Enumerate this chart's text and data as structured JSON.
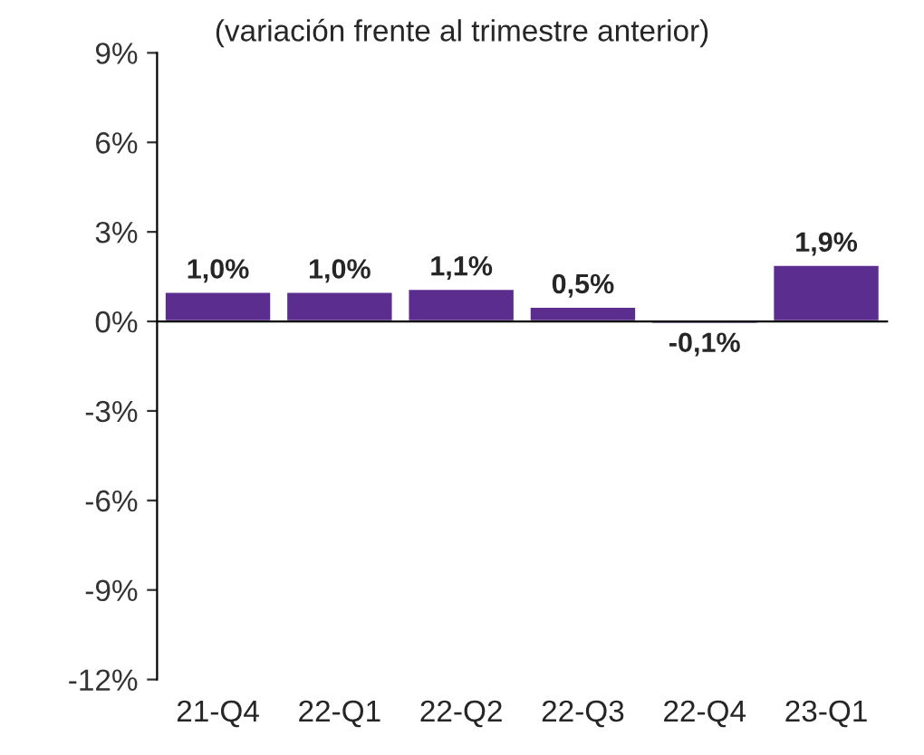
{
  "chart_data": {
    "type": "bar",
    "subtitle": "(variación frente al trimestre anterior)",
    "categories": [
      "21-Q4",
      "22-Q1",
      "22-Q2",
      "22-Q3",
      "22-Q4",
      "23-Q1"
    ],
    "values": [
      1.0,
      1.0,
      1.1,
      0.5,
      -0.1,
      1.9
    ],
    "value_labels": [
      "1,0%",
      "1,0%",
      "1,1%",
      "0,5%",
      "-0,1%",
      "1,9%"
    ],
    "color": "#5b2d8e",
    "ylim": [
      -12,
      9
    ],
    "yticks": [
      {
        "value": -12,
        "label": "-12%"
      },
      {
        "value": -9,
        "label": "-9%"
      },
      {
        "value": -6,
        "label": "-6%"
      },
      {
        "value": -3,
        "label": "-3%"
      },
      {
        "value": 0,
        "label": "0%"
      },
      {
        "value": 3,
        "label": "3%"
      },
      {
        "value": 6,
        "label": "6%"
      },
      {
        "value": 9,
        "label": "9%"
      }
    ],
    "legend": false
  }
}
